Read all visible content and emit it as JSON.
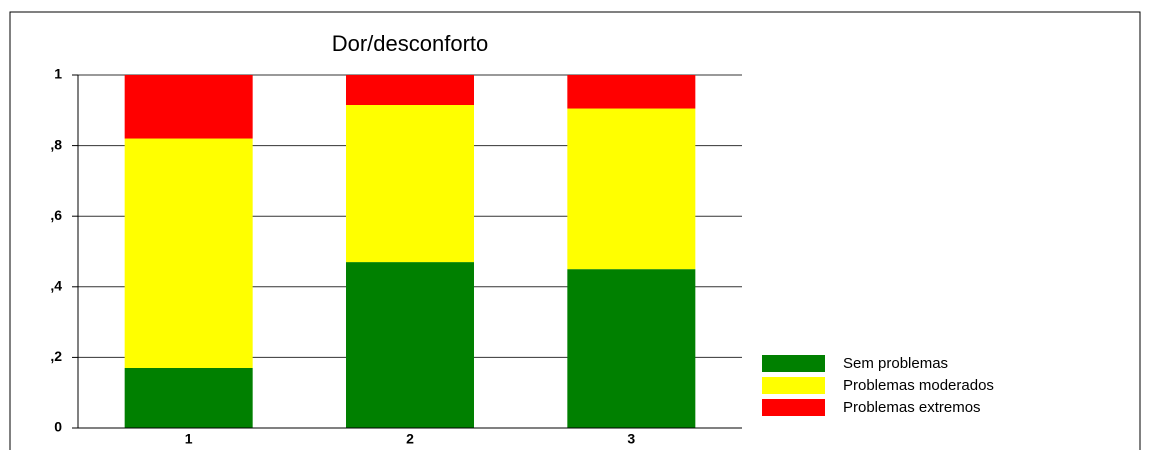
{
  "chart_data": {
    "type": "stacked_bar",
    "title": "Dor/desconforto",
    "categories": [
      "1",
      "2",
      "3"
    ],
    "series": [
      {
        "name": "Sem problemas",
        "color": "#008000",
        "values": [
          0.17,
          0.47,
          0.45
        ]
      },
      {
        "name": "Problemas moderados",
        "color": "#ffff00",
        "values": [
          0.65,
          0.445,
          0.455
        ]
      },
      {
        "name": "Problemas extremos",
        "color": "#ff0000",
        "values": [
          0.18,
          0.085,
          0.095
        ]
      }
    ],
    "ylim": [
      0,
      1
    ],
    "yticks": [
      0,
      {
        "value": 0.2,
        "label": ",2"
      },
      {
        "value": 0.4,
        "label": ",4"
      },
      {
        "value": 0.6,
        "label": ",6"
      },
      {
        "value": 0.8,
        "label": ",8"
      },
      1
    ],
    "grid": true,
    "legend": "right"
  }
}
